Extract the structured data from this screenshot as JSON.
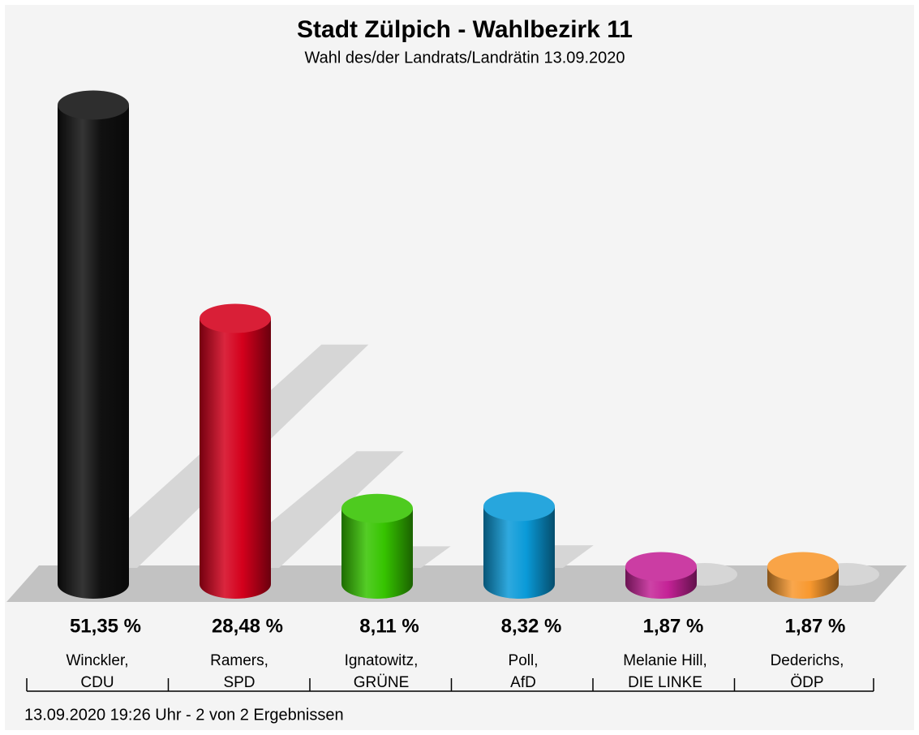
{
  "chart_data": {
    "type": "bar",
    "title": "Stadt Zülpich - Wahlbezirk 11",
    "subtitle": "Wahl des/der Landrats/Landrätin 13.09.2020",
    "categories": [
      "Winckler,",
      "Ramers,",
      "Ignatowitz,",
      "Poll,",
      "Melanie Hill,",
      "Dederichs,"
    ],
    "parties": [
      "CDU",
      "SPD",
      "GRÜNE",
      "AfD",
      "DIE LINKE",
      "ÖDP"
    ],
    "values": [
      51.35,
      28.48,
      8.11,
      8.32,
      1.87,
      1.87
    ],
    "value_labels": [
      "51,35 %",
      "28,48 %",
      "8,11 %",
      "8,32 %",
      "1,87 %",
      "1,87 %"
    ],
    "colors": [
      "#111111",
      "#d4001c",
      "#36c400",
      "#0a9ad8",
      "#c42296",
      "#f8982e"
    ],
    "footer": "13.09.2020 19:26 Uhr - 2 von 2 Ergebnissen"
  }
}
